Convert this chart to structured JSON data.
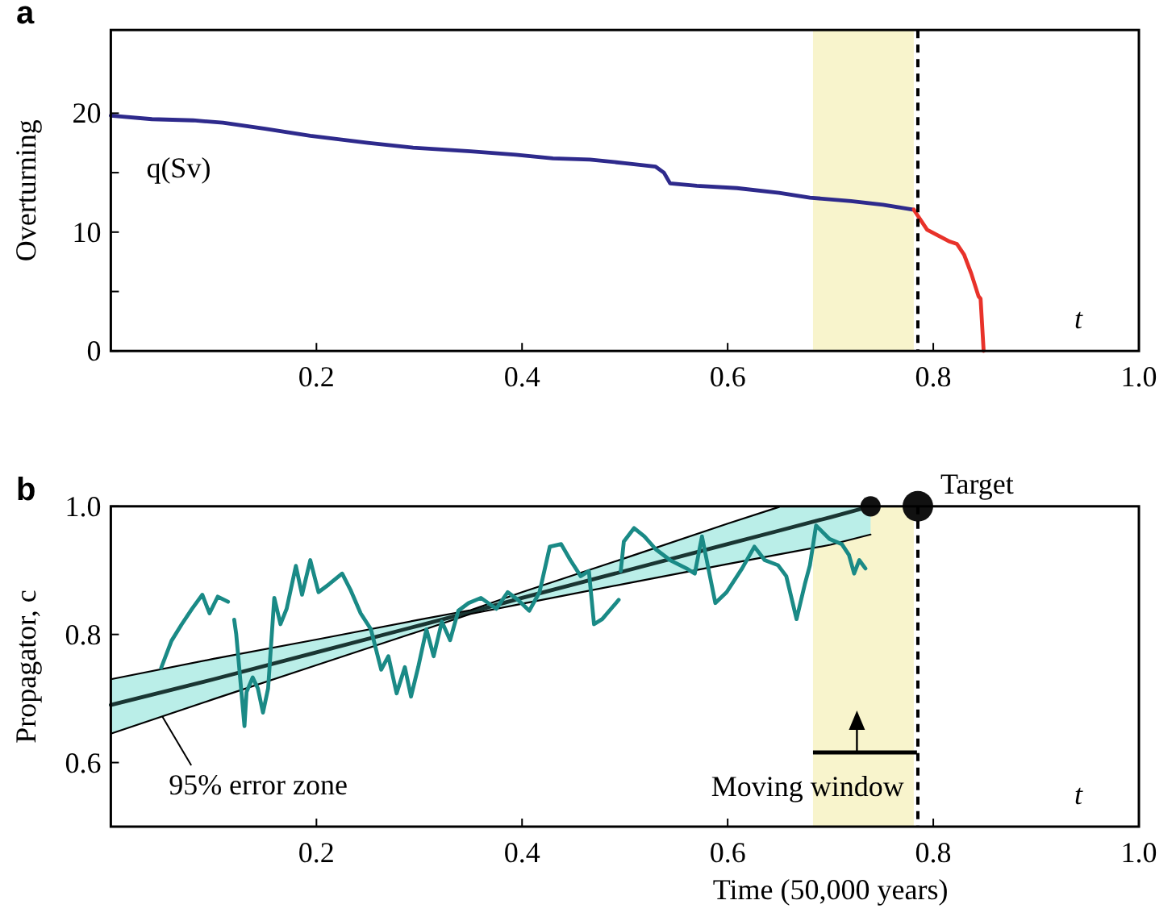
{
  "chart_data": [
    {
      "type": "line",
      "title": "a",
      "ylabel": "Overturning",
      "xlim": [
        0,
        1
      ],
      "ylim": [
        0,
        27
      ],
      "xticks": [
        0.2,
        0.4,
        0.6,
        0.8,
        {
          "value": 1,
          "label": "1.0"
        }
      ],
      "yticks": [
        0,
        {
          "value": 5,
          "label": null
        },
        10,
        {
          "value": 15,
          "label": null
        },
        20
      ],
      "series": [
        {
          "color": "#2e2a8c",
          "x": [
            0,
            0.04,
            0.08,
            0.109,
            0.15,
            0.194,
            0.25,
            0.294,
            0.35,
            0.394,
            0.43,
            0.466,
            0.5,
            0.53,
            0.538,
            0.544,
            0.57,
            0.609,
            0.65,
            0.68,
            0.72,
            0.751,
            0.78
          ],
          "values": [
            19.8,
            19.5,
            19.4,
            19.2,
            18.7,
            18.1,
            17.5,
            17.1,
            16.8,
            16.5,
            16.2,
            16.1,
            15.8,
            15.5,
            15.0,
            14.1,
            13.9,
            13.7,
            13.3,
            12.9,
            12.6,
            12.3,
            11.9
          ]
        },
        {
          "color": "#e8322a",
          "x": [
            0.781,
            0.784,
            0.794,
            0.816,
            0.823,
            0.83,
            0.837,
            0.844,
            0.846,
            0.849
          ],
          "values": [
            11.9,
            11.5,
            10.2,
            9.2,
            9.0,
            8.1,
            6.5,
            4.6,
            4.4,
            0
          ]
        }
      ],
      "bands": [
        {
          "axis": "x",
          "from": 0.683,
          "to": 0.781,
          "color": "#f8f4cc"
        }
      ],
      "ref_lines": [
        {
          "axis": "x",
          "value": 0.785,
          "color": "#000000",
          "line_style": "dashed"
        }
      ],
      "annotations": [
        "q(Sv)",
        "t"
      ]
    },
    {
      "type": "line",
      "title": "b",
      "xlabel": "Time (50,000 years)",
      "ylabel": "Propagator, c",
      "xlim": [
        0,
        1
      ],
      "ylim": [
        0.5,
        1
      ],
      "xticks": [
        0.2,
        0.4,
        0.6,
        0.8,
        {
          "value": 1,
          "label": "1.0"
        }
      ],
      "yticks": [
        0.6,
        0.8,
        {
          "value": 1,
          "label": "1.0"
        }
      ],
      "series": [
        {
          "color": "#1a3633",
          "x": [
            0,
            0.1,
            0.2,
            0.3,
            0.35,
            0.4,
            0.5,
            0.6,
            0.65,
            0.7,
            0.739
          ],
          "values": [
            0.69,
            0.73,
            0.772,
            0.814,
            0.835,
            0.857,
            0.899,
            0.941,
            0.962,
            0.983,
            1.0
          ],
          "lower": [
            0.645,
            0.699,
            0.752,
            0.805,
            0.832,
            0.848,
            0.879,
            0.91,
            0.925,
            0.94,
            0.956
          ],
          "upper": [
            0.73,
            0.762,
            0.792,
            0.823,
            0.838,
            0.866,
            0.919,
            0.973,
            0.999,
            1.0,
            1.0
          ]
        },
        {
          "color": "#000000",
          "x": [
            0,
            0.1,
            0.2,
            0.3,
            0.35,
            0.4,
            0.5,
            0.6,
            0.65,
            0.7,
            0.739
          ],
          "values": [
            0.645,
            0.699,
            0.752,
            0.805,
            0.832,
            0.848,
            0.879,
            0.91,
            0.925,
            0.94,
            0.956
          ]
        },
        {
          "color": "#000000",
          "x": [
            0,
            0.1,
            0.2,
            0.3,
            0.35,
            0.4,
            0.5,
            0.6,
            0.65
          ],
          "values": [
            0.73,
            0.762,
            0.792,
            0.823,
            0.838,
            0.866,
            0.919,
            0.973,
            0.999
          ]
        },
        {
          "color": "#1a8a86",
          "x": [
            0.049,
            0.059,
            0.069,
            0.079,
            0.089,
            0.096,
            0.104,
            0.114,
            0.117,
            0.12,
            0.122,
            0.13,
            0.132,
            0.138,
            0.143,
            0.148,
            0.153,
            0.159,
            0.165,
            0.171,
            0.18,
            0.186,
            0.194,
            0.202,
            0.212,
            0.225,
            0.233,
            0.243,
            0.253,
            0.263,
            0.27,
            0.278,
            0.286,
            0.292,
            0.299,
            0.307,
            0.314,
            0.322,
            0.33,
            0.338,
            0.348,
            0.36,
            0.375,
            0.386,
            0.396,
            0.407,
            0.417,
            0.427,
            0.438,
            0.447,
            0.457,
            0.465,
            0.47,
            0.478,
            0.494,
            0.495,
            0.496,
            0.499,
            0.509,
            0.519,
            0.53,
            0.544,
            0.56,
            0.568,
            0.575,
            0.588,
            0.599,
            0.614,
            0.626,
            0.636,
            0.649,
            0.657,
            0.667,
            0.675,
            0.68,
            0.686,
            0.699,
            0.711,
            0.718,
            0.723,
            0.728,
            0.734
          ],
          "values": [
            0.748,
            0.79,
            0.816,
            0.84,
            0.862,
            0.833,
            0.859,
            0.851,
            null,
            0.823,
            0.8,
            0.657,
            0.71,
            0.733,
            0.716,
            0.678,
            0.716,
            0.857,
            0.816,
            0.84,
            0.907,
            0.862,
            0.916,
            0.866,
            0.878,
            0.895,
            0.87,
            0.833,
            0.808,
            0.745,
            0.766,
            0.708,
            0.749,
            0.703,
            0.749,
            0.808,
            0.766,
            0.82,
            0.791,
            0.837,
            0.849,
            0.857,
            0.84,
            0.866,
            0.854,
            0.837,
            0.866,
            0.937,
            0.941,
            0.916,
            0.891,
            0.899,
            0.816,
            0.824,
            0.854,
            null,
            0.899,
            0.945,
            0.966,
            0.953,
            0.933,
            0.916,
            0.903,
            0.895,
            0.953,
            0.849,
            0.866,
            0.903,
            0.937,
            0.916,
            0.908,
            0.891,
            0.824,
            0.878,
            0.908,
            0.97,
            0.949,
            0.941,
            0.924,
            0.895,
            0.916,
            0.903
          ]
        },
        {
          "type": "bubble",
          "color": "#111111",
          "x": [
            0.739,
            0.785
          ],
          "values": [
            1.0,
            1.0
          ],
          "sizes": [
            0.44,
            1
          ]
        }
      ],
      "bands": [
        {
          "axis": "x",
          "from": 0.683,
          "to": 0.781,
          "color": "#f8f4cc"
        }
      ],
      "ref_lines": [
        {
          "axis": "x",
          "value": 0.785,
          "color": "#000000",
          "line_style": "dashed"
        }
      ],
      "annotations": [
        {
          "text": "Target",
          "x": 0.785,
          "y": 1.0
        },
        {
          "text": "95% error zone",
          "x": 0.05,
          "y": 0.672
        },
        "Moving window",
        "t"
      ]
    }
  ]
}
